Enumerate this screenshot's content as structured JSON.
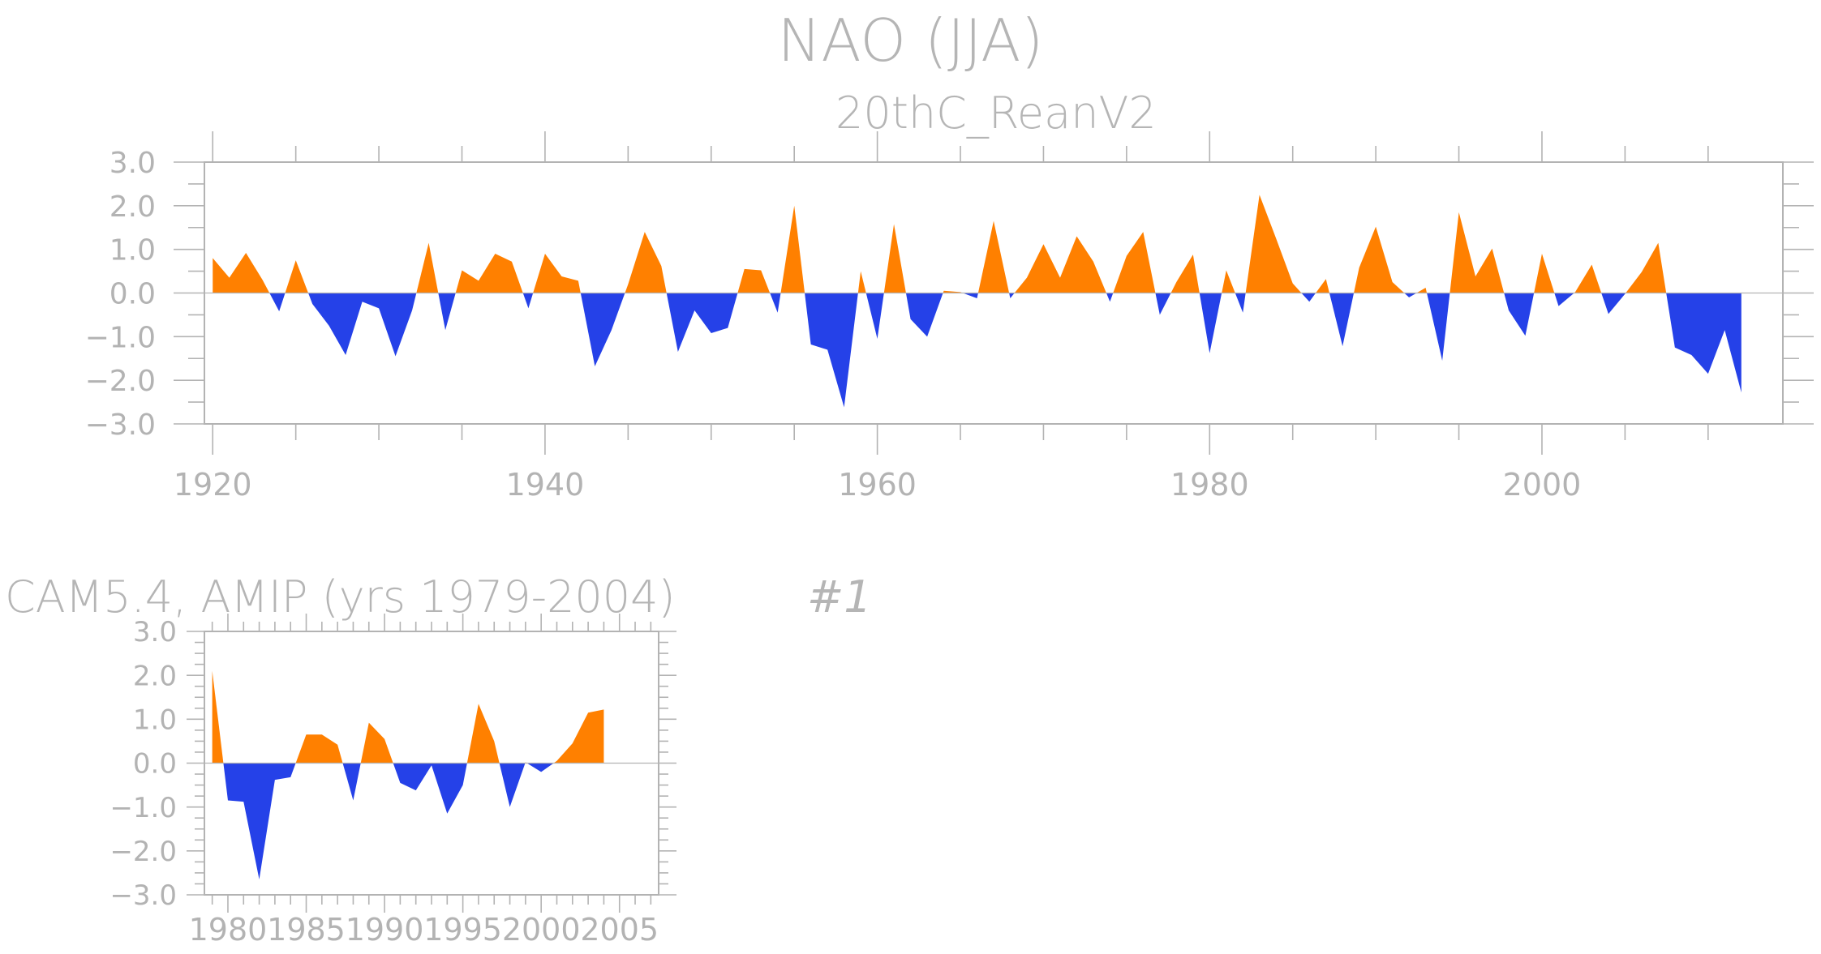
{
  "main_title": "NAO (JJA)",
  "subtitle": "20thC_ReanV2",
  "small_title": "CAM5.4, AMIP (yrs 1979-2004)",
  "small_tag": "#1",
  "colors": {
    "positive": "#ff8000",
    "negative": "#2541e8",
    "axis": "#b3b3b3"
  },
  "chart_data": [
    {
      "type": "area",
      "title": "20thC_ReanV2",
      "x_start": 1920,
      "xlim": [
        1919.5,
        2014.5
      ],
      "ylim": [
        -3.0,
        3.0
      ],
      "x_ticks": [
        1920,
        1940,
        1960,
        1980,
        2000
      ],
      "y_ticks": [
        3.0,
        2.0,
        1.0,
        0.0,
        -1.0,
        -2.0,
        -3.0
      ],
      "y_tick_labels": [
        "3.0",
        "2.0",
        "1.0",
        "0.0",
        "−1.0",
        "−2.0",
        "−3.0"
      ],
      "values": [
        0.8,
        0.35,
        0.92,
        0.3,
        -0.42,
        0.75,
        -0.25,
        -0.75,
        -1.42,
        -0.2,
        -0.35,
        -1.45,
        -0.4,
        1.15,
        -0.85,
        0.52,
        0.28,
        0.9,
        0.72,
        -0.35,
        0.9,
        0.38,
        0.28,
        -1.68,
        -0.85,
        0.2,
        1.4,
        0.62,
        -1.35,
        -0.4,
        -0.92,
        -0.8,
        0.55,
        0.52,
        -0.45,
        2.0,
        -1.18,
        -1.3,
        -2.62,
        0.5,
        -1.05,
        1.58,
        -0.6,
        -1.0,
        0.05,
        0.02,
        -0.12,
        1.65,
        -0.12,
        0.35,
        1.12,
        0.35,
        1.3,
        0.72,
        -0.2,
        0.85,
        1.4,
        -0.5,
        0.25,
        0.88,
        -1.38,
        0.52,
        -0.45,
        2.25,
        1.25,
        0.22,
        -0.2,
        0.32,
        -1.22,
        0.58,
        1.52,
        0.25,
        -0.1,
        0.12,
        -1.55,
        1.85,
        0.38,
        1.02,
        -0.4,
        -0.98,
        0.9,
        -0.3,
        0.02,
        0.65,
        -0.48,
        -0.02,
        0.48,
        1.15,
        -1.25,
        -1.42,
        -1.85,
        -0.85,
        -2.28
      ]
    },
    {
      "type": "area",
      "title": "CAM5.4, AMIP (yrs 1979-2004)",
      "x_start": 1979,
      "xlim": [
        1978.5,
        2007.5
      ],
      "ylim": [
        -3.0,
        3.0
      ],
      "x_ticks": [
        1980,
        1985,
        1990,
        1995,
        2000,
        2005
      ],
      "y_ticks": [
        3.0,
        2.0,
        1.0,
        0.0,
        -1.0,
        -2.0,
        -3.0
      ],
      "y_tick_labels": [
        "3.0",
        "2.0",
        "1.0",
        "0.0",
        "−1.0",
        "−2.0",
        "−3.0"
      ],
      "values": [
        2.1,
        -0.85,
        -0.88,
        -2.65,
        -0.38,
        -0.32,
        0.65,
        0.65,
        0.42,
        -0.85,
        0.92,
        0.55,
        -0.45,
        -0.62,
        -0.05,
        -1.15,
        -0.5,
        1.35,
        0.5,
        -1.0,
        0.02,
        -0.2,
        0.05,
        0.45,
        1.15,
        1.22
      ]
    }
  ]
}
